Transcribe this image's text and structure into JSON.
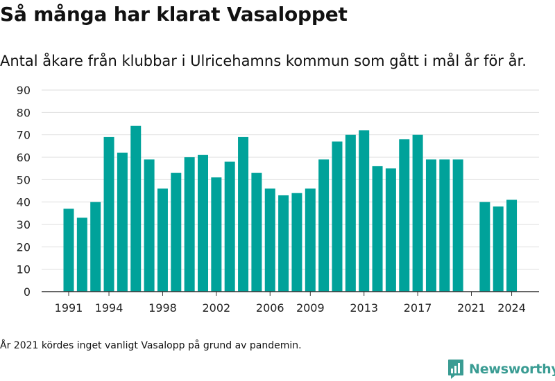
{
  "title": "Så många har klarat Vasaloppet",
  "subtitle": "Antal åkare från klubbar i Ulricehamns kommun som gått i mål år för år.",
  "footnote": "År 2021 kördes inget vanligt Vasalopp på grund av pandemin.",
  "brand": {
    "name": "Newsworthy",
    "icon": "newsworthy-logo-icon",
    "color": "#3a9c93"
  },
  "colors": {
    "bar": "#00a29a",
    "grid": "#dddddd",
    "axis": "#333333"
  },
  "chart_data": {
    "type": "bar",
    "x": [
      1991,
      1992,
      1993,
      1994,
      1995,
      1996,
      1997,
      1998,
      1999,
      2000,
      2001,
      2002,
      2003,
      2004,
      2005,
      2006,
      2007,
      2008,
      2009,
      2010,
      2011,
      2012,
      2013,
      2014,
      2015,
      2016,
      2017,
      2018,
      2019,
      2020,
      2021,
      2022,
      2023,
      2024
    ],
    "values": [
      37,
      33,
      40,
      69,
      62,
      74,
      59,
      46,
      53,
      60,
      61,
      51,
      58,
      69,
      53,
      46,
      43,
      44,
      46,
      59,
      67,
      70,
      72,
      56,
      55,
      68,
      70,
      59,
      59,
      59,
      null,
      40,
      38,
      41
    ],
    "x_tick_labels": [
      "1991",
      "1994",
      "1998",
      "2002",
      "2006",
      "2009",
      "2013",
      "2017",
      "2021",
      "2024"
    ],
    "y_ticks": [
      0,
      10,
      20,
      30,
      40,
      50,
      60,
      70,
      80,
      90
    ],
    "ylim": [
      0,
      90
    ],
    "grid": true
  }
}
